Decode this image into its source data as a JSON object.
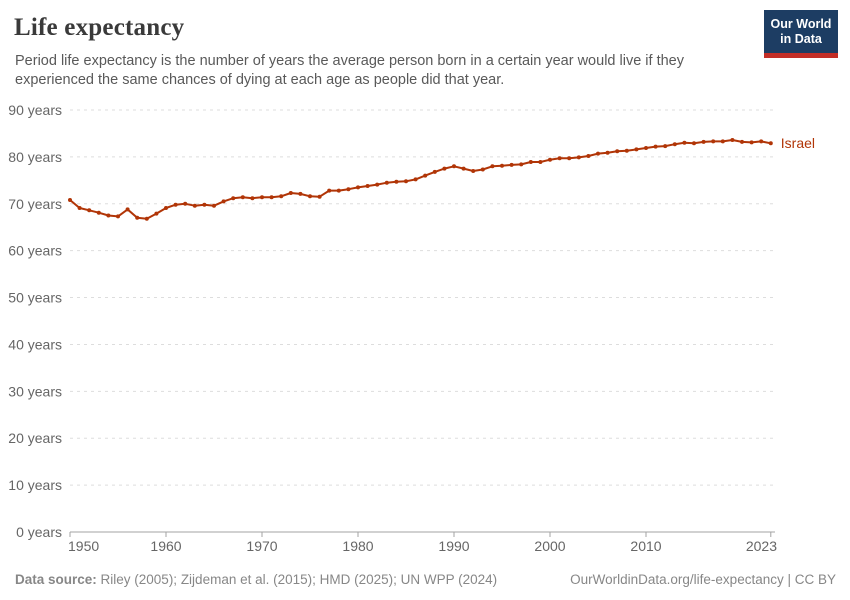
{
  "header": {
    "title": "Life expectancy",
    "subtitle": "Period life expectancy is the number of years the average person born in a certain year would live if they experienced the same chances of dying at each age as people did that year.",
    "logo": {
      "line1": "Our World",
      "line2": "in Data"
    }
  },
  "footer": {
    "source_label": "Data source:",
    "source_text": " Riley (2005); Zijdeman et al. (2015); HMD (2025); UN WPP (2024)",
    "link_text": "OurWorldinData.org/life-expectancy | CC BY"
  },
  "colors": {
    "line": "#b13507",
    "grid": "#dddddd",
    "axis": "#a3a3a3",
    "tick_label": "#666666",
    "title": "#3a3a3a",
    "logo_bg": "#1d3d63",
    "logo_bar": "#c32e27"
  },
  "chart_data": {
    "type": "line",
    "title": "Life expectancy",
    "xlabel": "",
    "ylabel": "",
    "grid": "dashed-horizontal",
    "legend_position": "end-of-line",
    "xlim": [
      1950,
      2023
    ],
    "ylim": [
      0,
      90
    ],
    "x_ticks": [
      1950,
      1960,
      1970,
      1980,
      1990,
      2000,
      2010,
      2023
    ],
    "y_ticks": [
      0,
      10,
      20,
      30,
      40,
      50,
      60,
      70,
      80,
      90
    ],
    "y_tick_suffix": " years",
    "series": [
      {
        "name": "Israel",
        "color": "#b13507",
        "x": [
          1950,
          1951,
          1952,
          1953,
          1954,
          1955,
          1956,
          1957,
          1958,
          1959,
          1960,
          1961,
          1962,
          1963,
          1964,
          1965,
          1966,
          1967,
          1968,
          1969,
          1970,
          1971,
          1972,
          1973,
          1974,
          1975,
          1976,
          1977,
          1978,
          1979,
          1980,
          1981,
          1982,
          1983,
          1984,
          1985,
          1986,
          1987,
          1988,
          1989,
          1990,
          1991,
          1992,
          1993,
          1994,
          1995,
          1996,
          1997,
          1998,
          1999,
          2000,
          2001,
          2002,
          2003,
          2004,
          2005,
          2006,
          2007,
          2008,
          2009,
          2010,
          2011,
          2012,
          2013,
          2014,
          2015,
          2016,
          2017,
          2018,
          2019,
          2020,
          2021,
          2022,
          2023
        ],
        "values": [
          70.8,
          69.1,
          68.6,
          68.1,
          67.5,
          67.3,
          68.8,
          67.0,
          66.8,
          67.9,
          69.1,
          69.8,
          70.0,
          69.6,
          69.8,
          69.6,
          70.5,
          71.2,
          71.4,
          71.2,
          71.4,
          71.4,
          71.6,
          72.3,
          72.1,
          71.6,
          71.5,
          72.8,
          72.8,
          73.1,
          73.5,
          73.8,
          74.1,
          74.5,
          74.7,
          74.8,
          75.2,
          76.0,
          76.8,
          77.5,
          78.0,
          77.5,
          77.0,
          77.3,
          78.0,
          78.1,
          78.3,
          78.4,
          78.9,
          78.9,
          79.4,
          79.7,
          79.7,
          79.9,
          80.2,
          80.7,
          80.9,
          81.2,
          81.3,
          81.6,
          81.9,
          82.2,
          82.3,
          82.7,
          83.0,
          82.9,
          83.2,
          83.3,
          83.3,
          83.6,
          83.2,
          83.1,
          83.3,
          82.9
        ]
      }
    ]
  }
}
